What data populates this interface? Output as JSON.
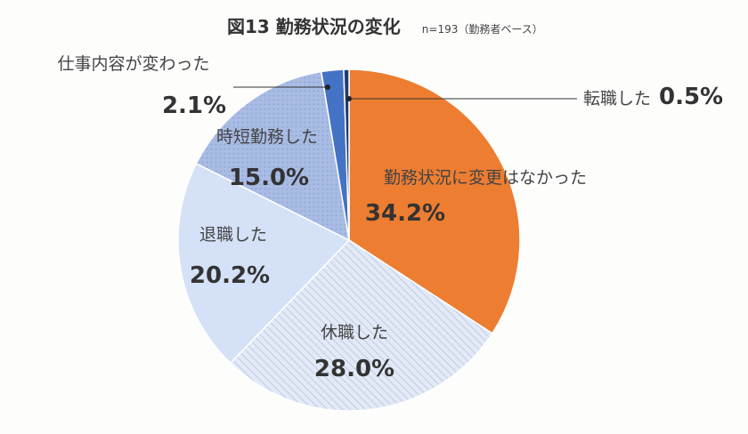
{
  "title": "図13 勤務状況の変化",
  "subtitle": "n=193（勤務者ベース）",
  "chart_data": {
    "type": "pie",
    "title": "図13 勤務状況の変化",
    "subtitle": "n=193（勤務者ベース）",
    "start": "12 o'clock",
    "direction": "clockwise",
    "slices": [
      {
        "label": "勤務状況に変更はなかった",
        "value": 34.2,
        "value_label": "34.2%",
        "color": "#ed7d31",
        "pattern": "solid"
      },
      {
        "label": "休職した",
        "value": 28.0,
        "value_label": "28.0%",
        "color": "#dde6f5",
        "pattern": "diagonal-stripes"
      },
      {
        "label": "退職した",
        "value": 20.2,
        "value_label": "20.2%",
        "color": "#d4e1f6",
        "pattern": "solid"
      },
      {
        "label": "時短勤務した",
        "value": 15.0,
        "value_label": "15.0%",
        "color": "#a6b9e2",
        "pattern": "dots"
      },
      {
        "label": "仕事内容が変わった",
        "value": 2.1,
        "value_label": "2.1%",
        "color": "#4472c4",
        "pattern": "solid"
      },
      {
        "label": "転職した",
        "value": 0.5,
        "value_label": "0.5%",
        "color": "#1f3b73",
        "pattern": "solid"
      }
    ]
  }
}
